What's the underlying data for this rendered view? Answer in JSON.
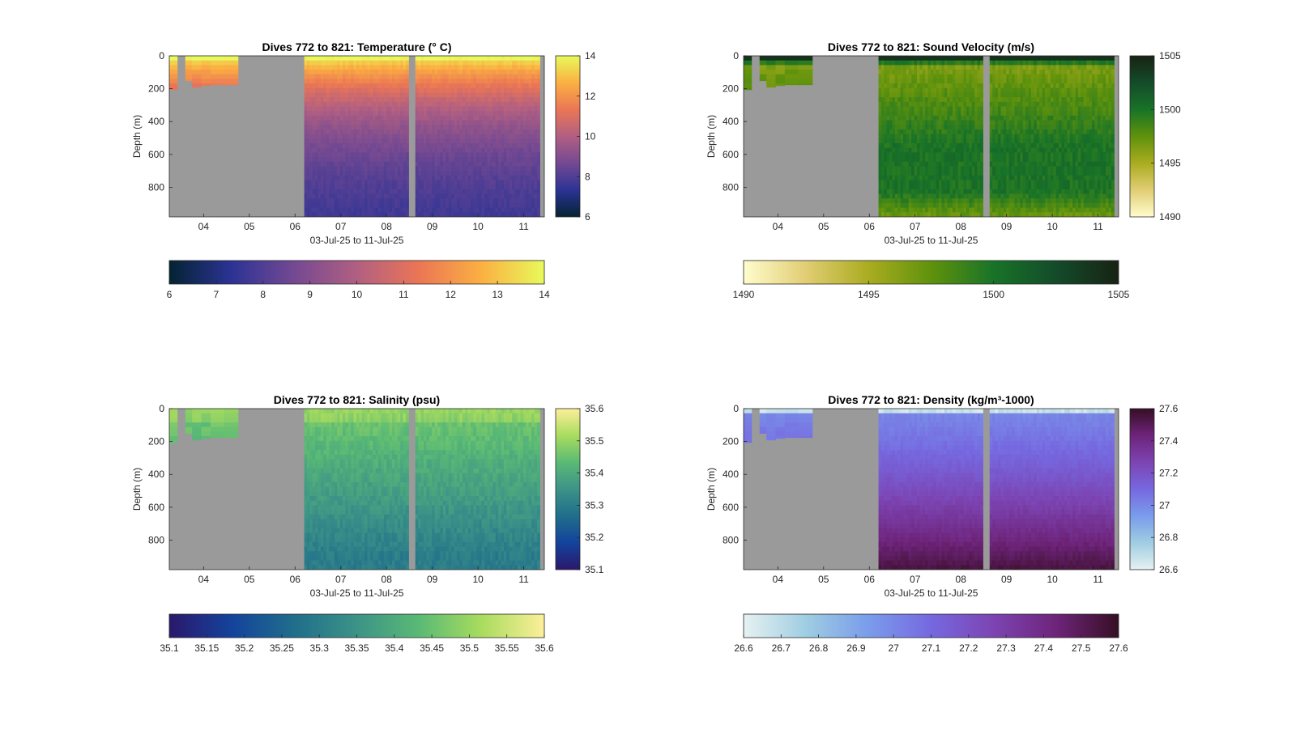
{
  "chart_data": [
    {
      "type": "heatmap",
      "variable": "temperature",
      "title": "Dives 772 to 821: Temperature (° C)",
      "xlabel": "03-Jul-25 to 11-Jul-25",
      "ylabel": "Depth (m)",
      "xlim": [
        3.25,
        11.45
      ],
      "ylim": [
        0,
        980
      ],
      "x_ticks": [
        "04",
        "05",
        "06",
        "07",
        "08",
        "09",
        "10",
        "11"
      ],
      "y_ticks": [
        "0",
        "200",
        "400",
        "600",
        "800"
      ],
      "colorbar_range": [
        6,
        14
      ],
      "colorbar_ticks": [
        "6",
        "8",
        "10",
        "12",
        "14"
      ],
      "horizontal_colorbar_ticks": [
        "6",
        "7",
        "8",
        "9",
        "10",
        "11",
        "12",
        "13",
        "14"
      ],
      "colormap": "thermal",
      "colormap_stops": [
        "#042333",
        "#2c3395",
        "#744992",
        "#b15f82",
        "#eb7655",
        "#fbb042",
        "#e8fa5b"
      ],
      "no_data_color": "#9a9a9a",
      "profile": {
        "surface": 13.8,
        "deep": 7.2
      }
    },
    {
      "type": "heatmap",
      "variable": "sound_velocity",
      "title": "Dives 772 to 821: Sound Velocity (m/s)",
      "xlabel": "03-Jul-25 to 11-Jul-25",
      "ylabel": "Depth (m)",
      "xlim": [
        3.25,
        11.45
      ],
      "ylim": [
        0,
        980
      ],
      "x_ticks": [
        "04",
        "05",
        "06",
        "07",
        "08",
        "09",
        "10",
        "11"
      ],
      "y_ticks": [
        "0",
        "200",
        "400",
        "600",
        "800"
      ],
      "colorbar_range": [
        1490,
        1505
      ],
      "colorbar_ticks": [
        "1490",
        "1495",
        "1500",
        "1505"
      ],
      "horizontal_colorbar_ticks": [
        "1490",
        "1495",
        "1500",
        "1505"
      ],
      "colormap": "speed",
      "colormap_stops": [
        "#fffdcd",
        "#e1cd73",
        "#aaac20",
        "#5f920c",
        "#187328",
        "#144b2a",
        "#172313"
      ],
      "no_data_color": "#9a9a9a",
      "profile": {
        "surface": 1504,
        "mid": 1496.5,
        "deep": 1500
      }
    },
    {
      "type": "heatmap",
      "variable": "salinity",
      "title": "Dives 772 to 821: Salinity (psu)",
      "xlabel": "03-Jul-25 to 11-Jul-25",
      "ylabel": "Depth (m)",
      "xlim": [
        3.25,
        11.45
      ],
      "ylim": [
        0,
        980
      ],
      "x_ticks": [
        "04",
        "05",
        "06",
        "07",
        "08",
        "09",
        "10",
        "11"
      ],
      "y_ticks": [
        "0",
        "200",
        "400",
        "600",
        "800"
      ],
      "colorbar_range": [
        35.1,
        35.6
      ],
      "colorbar_ticks": [
        "35.1",
        "35.2",
        "35.3",
        "35.4",
        "35.5",
        "35.6"
      ],
      "horizontal_colorbar_ticks": [
        "35.1",
        "35.15",
        "35.2",
        "35.25",
        "35.3",
        "35.35",
        "35.4",
        "35.45",
        "35.5",
        "35.55",
        "35.6"
      ],
      "colormap": "haline",
      "colormap_stops": [
        "#2a186c",
        "#14439c",
        "#206e8b",
        "#3c9387",
        "#5aba75",
        "#a9dc5e",
        "#fdef9a"
      ],
      "no_data_color": "#9a9a9a",
      "profile": {
        "surface": 35.47,
        "deep": 35.3
      }
    },
    {
      "type": "heatmap",
      "variable": "density",
      "title": "Dives 772 to 821: Density (kg/m³-1000)",
      "xlabel": "03-Jul-25 to 11-Jul-25",
      "ylabel": "Depth (m)",
      "xlim": [
        3.25,
        11.45
      ],
      "ylim": [
        0,
        980
      ],
      "x_ticks": [
        "04",
        "05",
        "06",
        "07",
        "08",
        "09",
        "10",
        "11"
      ],
      "y_ticks": [
        "0",
        "200",
        "400",
        "600",
        "800"
      ],
      "colorbar_range": [
        26.6,
        27.6
      ],
      "colorbar_ticks": [
        "26.6",
        "26.8",
        "27",
        "27.2",
        "27.4",
        "27.6"
      ],
      "horizontal_colorbar_ticks": [
        "26.6",
        "26.7",
        "26.8",
        "26.9",
        "27",
        "27.1",
        "27.2",
        "27.3",
        "27.4",
        "27.5",
        "27.6"
      ],
      "colormap": "dense",
      "colormap_stops": [
        "#e6f1f1",
        "#9fcde2",
        "#7a9ceb",
        "#7668e0",
        "#7c44b2",
        "#6e247a",
        "#360e24"
      ],
      "no_data_color": "#9a9a9a",
      "profile": {
        "surface": 26.75,
        "deep": 27.55
      }
    }
  ]
}
